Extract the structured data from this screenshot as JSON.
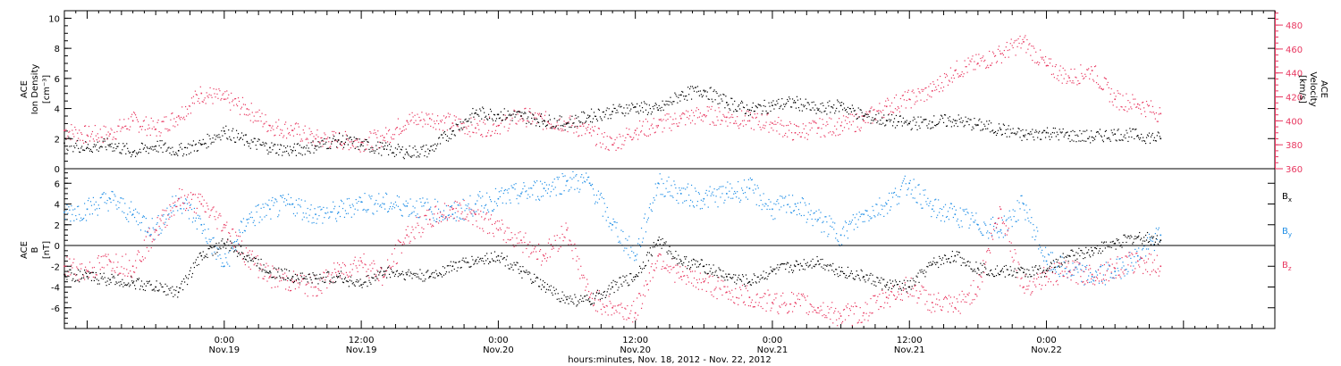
{
  "chart_data": [
    {
      "panel": "top",
      "type": "scatter",
      "ylabel": [
        "ACE",
        "Ion Density",
        "[cm⁻³]"
      ],
      "ylabel_right": [
        "ACE",
        "Velocity",
        "[km/s]"
      ],
      "xlim_hours": [
        -14,
        92
      ],
      "ylim": [
        0,
        10.5
      ],
      "ylim_right": [
        360,
        492
      ],
      "yticks": [
        "0",
        "2",
        "4",
        "6",
        "8",
        "10"
      ],
      "yticks_right": [
        "360",
        "380",
        "400",
        "420",
        "440",
        "460",
        "480"
      ],
      "colors": {
        "left": "#000000",
        "right": "#e8365f"
      },
      "series": [
        {
          "name": "Ion Density",
          "axis": "left",
          "color": "#000000",
          "x_hours": [
            -14,
            -12,
            -10,
            -8,
            -6,
            -4,
            -2,
            0,
            2,
            4,
            6,
            8,
            10,
            12,
            14,
            16,
            18,
            20,
            22,
            24,
            26,
            28,
            30,
            32,
            34,
            36,
            38,
            40,
            42,
            44,
            46,
            48,
            50,
            52,
            54,
            56,
            58,
            60,
            62,
            64,
            66,
            68,
            70,
            72,
            74,
            76,
            78,
            80,
            82
          ],
          "values": [
            1.7,
            1.4,
            1.6,
            1.1,
            1.5,
            1.2,
            1.6,
            2.5,
            1.8,
            1.4,
            1.2,
            1.5,
            1.9,
            1.6,
            1.3,
            1.1,
            1.2,
            2.5,
            3.7,
            3.6,
            3.5,
            3.2,
            3.0,
            3.5,
            3.8,
            4.1,
            3.9,
            4.9,
            5.2,
            4.4,
            3.9,
            4.2,
            4.4,
            3.9,
            4.2,
            3.5,
            3.2,
            3.0,
            3.1,
            3.2,
            2.9,
            2.6,
            2.2,
            2.4,
            2.2,
            2.1,
            2.3,
            2.2,
            2.0
          ]
        },
        {
          "name": "Velocity",
          "axis": "right",
          "color": "#e8365f",
          "x_hours": [
            -14,
            -12,
            -10,
            -8,
            -6,
            -4,
            -2,
            0,
            2,
            4,
            6,
            8,
            10,
            12,
            14,
            16,
            18,
            20,
            22,
            24,
            26,
            28,
            30,
            32,
            34,
            36,
            38,
            40,
            42,
            44,
            46,
            48,
            50,
            52,
            54,
            56,
            58,
            60,
            62,
            64,
            66,
            68,
            70,
            72,
            74,
            76,
            78,
            80,
            82
          ],
          "values": [
            392,
            388,
            389,
            400,
            393,
            404,
            423,
            418,
            410,
            396,
            392,
            385,
            384,
            382,
            386,
            400,
            402,
            398,
            394,
            396,
            404,
            400,
            398,
            390,
            380,
            392,
            396,
            402,
            405,
            403,
            400,
            398,
            390,
            394,
            396,
            400,
            412,
            418,
            425,
            442,
            448,
            456,
            466,
            446,
            436,
            442,
            418,
            414,
            406
          ]
        }
      ]
    },
    {
      "panel": "bottom",
      "type": "scatter",
      "ylabel": [
        "ACE",
        "B",
        "[nT]"
      ],
      "xlabel": "hours:minutes, Nov. 18, 2012 - Nov. 22, 2012",
      "xlim_hours": [
        -14,
        92
      ],
      "ylim": [
        -8,
        7.4
      ],
      "yticks": [
        "-6",
        "-4",
        "-2",
        "0",
        "2",
        "4",
        "6"
      ],
      "zero_line": true,
      "xticks": [
        {
          "time": "0:00",
          "date": "Nov.19",
          "hour": 0
        },
        {
          "time": "12:00",
          "date": "Nov.19",
          "hour": 12
        },
        {
          "time": "0:00",
          "date": "Nov.20",
          "hour": 24
        },
        {
          "time": "12:00",
          "date": "Nov.20",
          "hour": 36
        },
        {
          "time": "0:00",
          "date": "Nov.21",
          "hour": 48
        },
        {
          "time": "12:00",
          "date": "Nov.21",
          "hour": 60
        },
        {
          "time": "0:00",
          "date": "Nov.22",
          "hour": 72
        }
      ],
      "legend": [
        {
          "label": "B",
          "sub": "x",
          "color": "#000000"
        },
        {
          "label": "B",
          "sub": "y",
          "color": "#1f8ee6"
        },
        {
          "label": "B",
          "sub": "z",
          "color": "#e8365f"
        }
      ],
      "series": [
        {
          "name": "Bx",
          "color": "#000000",
          "x_hours": [
            -14,
            -12,
            -10,
            -8,
            -6,
            -4,
            -2,
            0,
            2,
            4,
            6,
            8,
            10,
            12,
            14,
            16,
            18,
            20,
            22,
            24,
            26,
            28,
            30,
            32,
            34,
            36,
            38,
            40,
            42,
            44,
            46,
            48,
            50,
            52,
            54,
            56,
            58,
            60,
            62,
            64,
            66,
            68,
            70,
            72,
            74,
            76,
            78,
            80,
            82
          ],
          "values": [
            -2.8,
            -3.0,
            -3.3,
            -3.6,
            -4.0,
            -4.5,
            -1.0,
            0.2,
            -1.0,
            -2.5,
            -3.0,
            -3.2,
            -3.0,
            -3.8,
            -2.5,
            -2.8,
            -3.0,
            -2.0,
            -1.5,
            -1.0,
            -2.5,
            -4.0,
            -5.2,
            -5.4,
            -4.0,
            -3.0,
            0.5,
            -1.5,
            -2.0,
            -3.0,
            -3.5,
            -2.5,
            -2.0,
            -1.5,
            -2.5,
            -3.0,
            -3.8,
            -4.0,
            -1.8,
            -1.0,
            -2.2,
            -2.5,
            -2.6,
            -2.4,
            -1.0,
            -0.5,
            0.2,
            0.8,
            0.5
          ]
        },
        {
          "name": "By",
          "color": "#1f8ee6",
          "x_hours": [
            -14,
            -12,
            -10,
            -8,
            -6,
            -4,
            -2,
            0,
            2,
            4,
            6,
            8,
            10,
            12,
            14,
            16,
            18,
            20,
            22,
            24,
            26,
            28,
            30,
            32,
            34,
            36,
            38,
            40,
            42,
            44,
            46,
            48,
            50,
            52,
            54,
            56,
            58,
            60,
            62,
            64,
            66,
            68,
            70,
            72,
            74,
            76,
            78,
            80,
            82
          ],
          "values": [
            3.2,
            3.5,
            4.5,
            3.0,
            1.5,
            4.5,
            2.0,
            -2.0,
            2.5,
            3.5,
            4.0,
            3.0,
            3.2,
            4.2,
            4.0,
            3.8,
            3.5,
            3.0,
            4.0,
            4.5,
            5.0,
            5.5,
            6.2,
            6.0,
            2.0,
            -1.0,
            6.0,
            5.0,
            4.5,
            5.0,
            5.5,
            3.5,
            4.0,
            2.5,
            1.0,
            3.0,
            4.0,
            6.0,
            3.5,
            3.0,
            2.0,
            1.5,
            4.0,
            -1.5,
            -2.5,
            -3.0,
            -2.5,
            -1.0,
            1.0
          ]
        },
        {
          "name": "Bz",
          "color": "#e8365f",
          "x_hours": [
            -14,
            -12,
            -10,
            -8,
            -6,
            -4,
            -2,
            0,
            2,
            4,
            6,
            8,
            10,
            12,
            14,
            16,
            18,
            20,
            22,
            24,
            26,
            28,
            30,
            32,
            34,
            36,
            38,
            40,
            42,
            44,
            46,
            48,
            50,
            52,
            54,
            56,
            58,
            60,
            62,
            64,
            66,
            68,
            70,
            72,
            74,
            76,
            78,
            80,
            82
          ],
          "values": [
            -2.0,
            -2.5,
            -1.5,
            -2.0,
            1.5,
            4.5,
            4.0,
            2.0,
            -1.0,
            -3.0,
            -3.5,
            -4.0,
            -2.5,
            -1.5,
            -3.0,
            1.0,
            2.5,
            3.5,
            3.0,
            1.5,
            0.5,
            -1.0,
            1.5,
            -5.0,
            -6.0,
            -6.5,
            -1.0,
            -3.0,
            -3.5,
            -4.5,
            -5.0,
            -5.5,
            -5.5,
            -6.0,
            -6.8,
            -6.5,
            -5.0,
            -4.0,
            -5.5,
            -6.0,
            -4.0,
            3.5,
            -4.0,
            -3.0,
            -2.5,
            -2.8,
            -2.2,
            -1.5,
            -2.0
          ]
        }
      ]
    }
  ]
}
